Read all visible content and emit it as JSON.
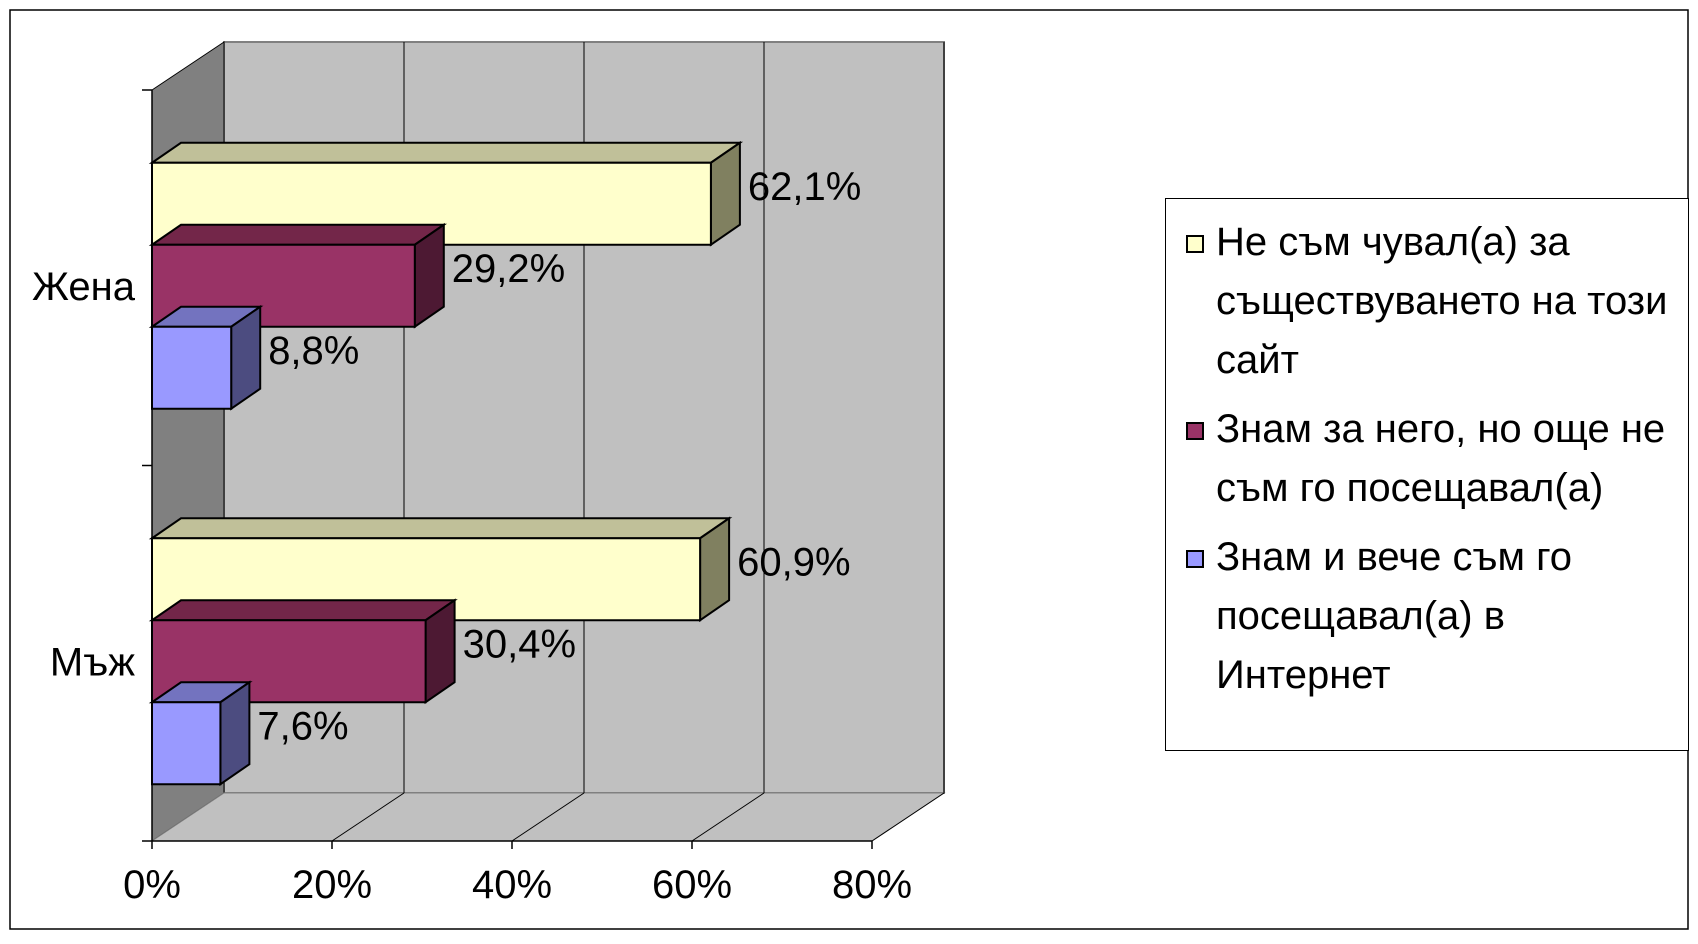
{
  "chart_data": {
    "type": "bar",
    "orientation": "horizontal",
    "three_d": true,
    "categories": [
      "Мъж",
      "Жена"
    ],
    "series": [
      {
        "name": "Не съм чувал(а) за съществуването на този сайт",
        "values": [
          60.9,
          62.1
        ],
        "labels": [
          "60,9%",
          "62,1%"
        ],
        "color": "#FFFFCC",
        "side_color": "#808060",
        "top_color": "#C0C099"
      },
      {
        "name": "Знам за него, но още не съм го посещавал(а)",
        "values": [
          30.4,
          29.2
        ],
        "labels": [
          "30,4%",
          "29,2%"
        ],
        "color": "#993366",
        "side_color": "#4D1933",
        "top_color": "#732649"
      },
      {
        "name": "Знам и вече съм го посещавал(а) в Интернет",
        "values": [
          7.6,
          8.8
        ],
        "labels": [
          "7,6%",
          "8,8%"
        ],
        "color": "#9999FF",
        "side_color": "#4C4C80",
        "top_color": "#7373BF"
      }
    ],
    "xlim": [
      0,
      80
    ],
    "ticks": [
      "0%",
      "20%",
      "40%",
      "60%",
      "80%"
    ],
    "tick_values": [
      0,
      20,
      40,
      60,
      80
    ],
    "grid": true,
    "legend_position": "right",
    "wall_color": "#C0C0C0",
    "side_wall_color": "#808080"
  }
}
